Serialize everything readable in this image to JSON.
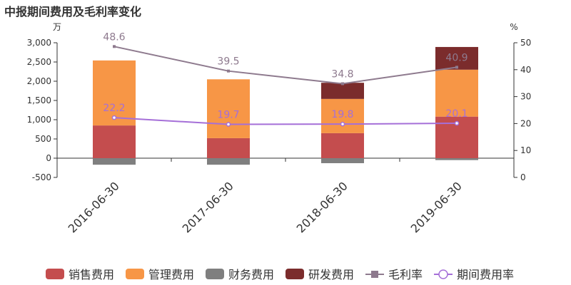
{
  "title": "中报期间费用及毛利率变化",
  "chart_data": {
    "type": "bar",
    "stacked": true,
    "title": "中报期间费用及毛利率变化",
    "categories": [
      "2016-06-30",
      "2017-06-30",
      "2018-06-30",
      "2019-06-30"
    ],
    "left_axis": {
      "unit": "万",
      "min": -500,
      "max": 3000,
      "ticks": [
        -500,
        0,
        500,
        1000,
        1500,
        2000,
        2500,
        3000
      ]
    },
    "right_axis": {
      "unit": "%",
      "min": 0,
      "max": 50,
      "ticks": [
        0,
        10,
        20,
        30,
        40,
        50
      ]
    },
    "series": [
      {
        "name": "销售费用",
        "type": "bar",
        "color": "#c44d4e",
        "values": [
          850,
          520,
          650,
          1080
        ]
      },
      {
        "name": "管理费用",
        "type": "bar",
        "color": "#f79646",
        "values": [
          1690,
          1530,
          890,
          1220
        ]
      },
      {
        "name": "财务费用",
        "type": "bar",
        "color": "#7f7f7f",
        "values": [
          -170,
          -170,
          -130,
          -50
        ]
      },
      {
        "name": "研发费用",
        "type": "bar",
        "color": "#7b2c2c",
        "values": [
          0,
          0,
          420,
          590
        ]
      },
      {
        "name": "毛利率",
        "type": "line",
        "axis": "right",
        "color": "#8e7a8e",
        "values": [
          48.6,
          39.5,
          34.8,
          40.9
        ]
      },
      {
        "name": "期间费用率",
        "type": "line",
        "axis": "right",
        "color": "#a56fd8",
        "values": [
          22.2,
          19.7,
          19.8,
          20.1
        ]
      }
    ],
    "grid": false,
    "legend": "bottom"
  }
}
